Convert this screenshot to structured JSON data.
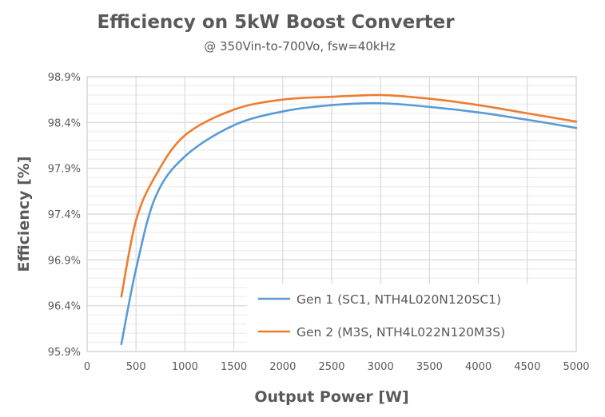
{
  "chart_data": {
    "type": "line",
    "title": "Efficiency on 5kW Boost Converter",
    "subtitle": "@ 350Vin-to-700Vo, fsw=40kHz",
    "xlabel": "Output Power [W]",
    "ylabel": "Efficiency [%]",
    "xlim": [
      0,
      5000
    ],
    "ylim": [
      95.9,
      98.9
    ],
    "x_ticks": [
      "0",
      "500",
      "1000",
      "1500",
      "2000",
      "2500",
      "3000",
      "3500",
      "4000",
      "4500",
      "5000"
    ],
    "y_ticks": [
      "95.9%",
      "96.4%",
      "96.9%",
      "97.4%",
      "97.9%",
      "98.4%",
      "98.9%"
    ],
    "grid": true,
    "minor_y_grid_step": 0.1,
    "legend_position": "bottom-right",
    "series": [
      {
        "name": "Gen 1 (SC1, NTH4L020N120SC1)",
        "color": "#5B9BD5",
        "x": [
          350,
          500,
          700,
          1000,
          1500,
          2000,
          2500,
          3000,
          3500,
          4000,
          4500,
          5000
        ],
        "y": [
          95.98,
          96.8,
          97.59,
          98.03,
          98.37,
          98.52,
          98.59,
          98.61,
          98.57,
          98.51,
          98.43,
          98.34
        ]
      },
      {
        "name": "Gen 2 (M3S, NTH4L022N120M3S)",
        "color": "#ED7D31",
        "x": [
          350,
          500,
          700,
          1000,
          1500,
          2000,
          2500,
          3000,
          3500,
          4000,
          4500,
          5000
        ],
        "y": [
          96.5,
          97.33,
          97.82,
          98.26,
          98.54,
          98.65,
          98.68,
          98.7,
          98.66,
          98.59,
          98.5,
          98.41
        ]
      }
    ]
  }
}
